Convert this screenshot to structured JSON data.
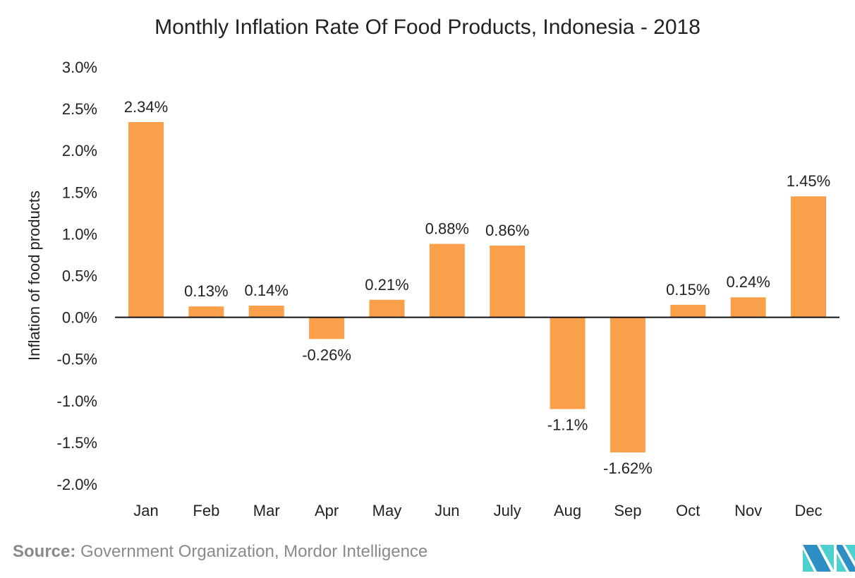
{
  "chart_data": {
    "type": "bar",
    "title": "Monthly Inflation Rate Of Food Products, Indonesia - 2018",
    "xlabel": "",
    "ylabel": "Inflation of food products",
    "categories": [
      "Jan",
      "Feb",
      "Mar",
      "Apr",
      "May",
      "Jun",
      "July",
      "Aug",
      "Sep",
      "Oct",
      "Nov",
      "Dec"
    ],
    "values": [
      2.34,
      0.13,
      0.14,
      -0.26,
      0.21,
      0.88,
      0.86,
      -1.1,
      -1.62,
      0.15,
      0.24,
      1.45
    ],
    "data_labels": [
      "2.34%",
      "0.13%",
      "0.14%",
      "-0.26%",
      "0.21%",
      "0.88%",
      "0.86%",
      "-1.1%",
      "-1.62%",
      "0.15%",
      "0.24%",
      "1.45%"
    ],
    "ylim": [
      -2.0,
      3.0
    ],
    "yticks": [
      3.0,
      2.5,
      2.0,
      1.5,
      1.0,
      0.5,
      0.0,
      -0.5,
      -1.0,
      -1.5,
      -2.0
    ],
    "ytick_labels": [
      "3.0%",
      "2.5%",
      "2.0%",
      "1.5%",
      "1.0%",
      "0.5%",
      "0.0%",
      "-0.5%",
      "-1.0%",
      "-1.5%",
      "-2.0%"
    ],
    "grid": false,
    "legend": "none",
    "bar_color": "#fba04a"
  },
  "source": {
    "label": "Source:",
    "text": " Government Organization, Mordor Intelligence"
  },
  "logo": {
    "text": "Mordor Intelligence",
    "colors": [
      "#2e8fc4",
      "#4ecfd0"
    ]
  }
}
